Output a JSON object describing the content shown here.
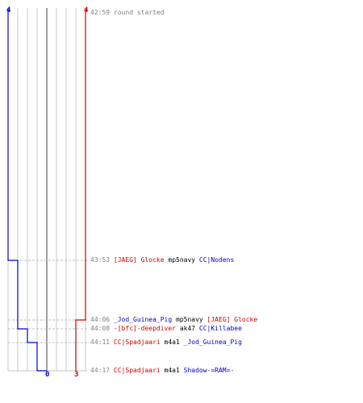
{
  "colors": {
    "red_team": "#cc0000",
    "blue_team": "#0000cc",
    "grid": "#c8c8c8",
    "time": "#808080"
  },
  "score_labels": {
    "blue_start": "4",
    "red_start": "4",
    "blue_end": "0",
    "red_end": "3"
  },
  "events": [
    {
      "time": "42:59",
      "text": "round started"
    },
    {
      "time": "43:53",
      "killer": "[JAEG] Glocke",
      "killer_team": "red",
      "weapon": "mp5navy",
      "victim": "CC|Nodens",
      "victim_team": "blue"
    },
    {
      "time": "44:06",
      "killer": "_Jod_Guinea_Pig",
      "killer_team": "blue",
      "weapon": "mp5navy",
      "victim": "[JAEG] Glocke",
      "victim_team": "red"
    },
    {
      "time": "44:08",
      "killer": "-[bfc]-deepdiver",
      "killer_team": "red",
      "weapon": "ak47",
      "victim": "CC|Killabee",
      "victim_team": "blue"
    },
    {
      "time": "44:11",
      "killer": "CC|Spadjaari",
      "killer_team": "red",
      "weapon": "m4a1",
      "victim": "_Jod_Guinea_Pig",
      "victim_team": "blue"
    },
    {
      "time": "44:17",
      "killer": "CC|Spadjaari",
      "killer_team": "red",
      "weapon": "m4a1",
      "victim": "Shadow-=RAM=-",
      "victim_team": "blue"
    }
  ],
  "chart_data": {
    "type": "line",
    "title": "",
    "xlabel": "",
    "ylabel": "",
    "series": [
      {
        "team": "blue",
        "color": "#0000cc",
        "values": [
          4,
          3,
          2,
          1,
          0
        ]
      },
      {
        "team": "red",
        "color": "#cc0000",
        "values": [
          4,
          3
        ]
      }
    ],
    "y_time_axis": [
      "42:59",
      "43:53",
      "44:06",
      "44:08",
      "44:11",
      "44:17"
    ],
    "xlim": [
      0,
      8
    ]
  }
}
